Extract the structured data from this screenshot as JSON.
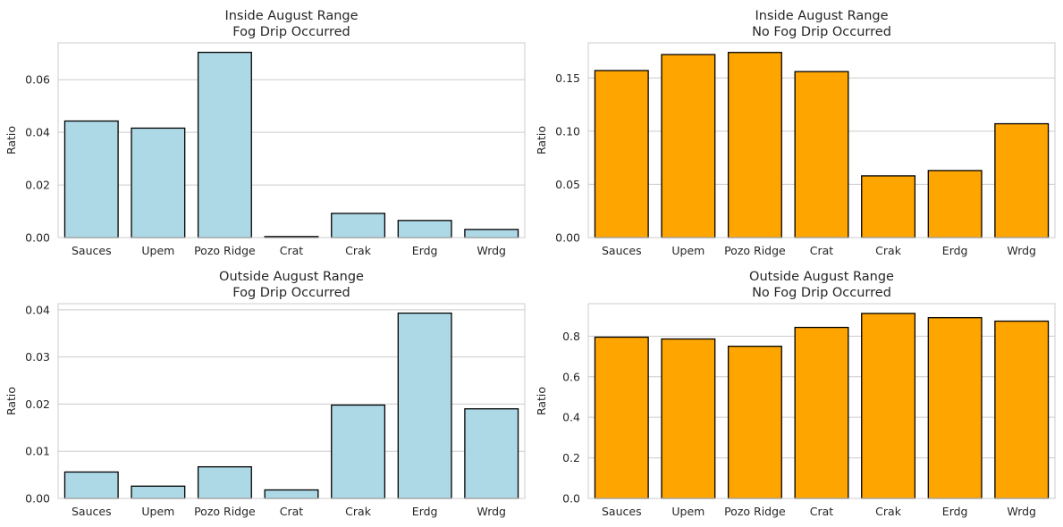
{
  "colors": {
    "fog": "#add8e6",
    "nofog": "#ffa500",
    "edge": "#000000",
    "grid": "#cccccc",
    "spine": "#cccccc",
    "text": "#262626"
  },
  "chart_data": [
    {
      "type": "bar",
      "title": [
        "Inside August Range",
        "Fog Drip Occurred"
      ],
      "categories": [
        "Sauces",
        "Upem",
        "Pozo Ridge",
        "Crat",
        "Crak",
        "Erdg",
        "Wrdg"
      ],
      "values": [
        0.0443,
        0.0416,
        0.0704,
        0.0004,
        0.0092,
        0.0065,
        0.0031
      ],
      "ylabel": "Ratio",
      "xlabel": "",
      "ylim": [
        0,
        0.074
      ],
      "yticks": [
        0,
        0.02,
        0.04,
        0.06
      ],
      "ytick_labels": [
        "0.00",
        "0.02",
        "0.04",
        "0.06"
      ],
      "color_key": "fog",
      "grid": "y"
    },
    {
      "type": "bar",
      "title": [
        "Inside August Range",
        "No Fog Drip Occurred"
      ],
      "categories": [
        "Sauces",
        "Upem",
        "Pozo Ridge",
        "Crat",
        "Crak",
        "Erdg",
        "Wrdg"
      ],
      "values": [
        0.157,
        0.172,
        0.174,
        0.156,
        0.058,
        0.063,
        0.107
      ],
      "ylabel": "Ratio",
      "xlabel": "",
      "ylim": [
        0,
        0.183
      ],
      "yticks": [
        0,
        0.05,
        0.1,
        0.15
      ],
      "ytick_labels": [
        "0.00",
        "0.05",
        "0.10",
        "0.15"
      ],
      "color_key": "nofog",
      "grid": "y"
    },
    {
      "type": "bar",
      "title": [
        "Outside August Range",
        "Fog Drip Occurred"
      ],
      "categories": [
        "Sauces",
        "Upem",
        "Pozo Ridge",
        "Crat",
        "Crak",
        "Erdg",
        "Wrdg"
      ],
      "values": [
        0.0056,
        0.0026,
        0.0067,
        0.0018,
        0.0198,
        0.0393,
        0.019
      ],
      "ylabel": "Ratio",
      "xlabel": "",
      "ylim": [
        0,
        0.0413
      ],
      "yticks": [
        0,
        0.01,
        0.02,
        0.03,
        0.04
      ],
      "ytick_labels": [
        "0.00",
        "0.01",
        "0.02",
        "0.03",
        "0.04"
      ],
      "color_key": "fog",
      "grid": "y"
    },
    {
      "type": "bar",
      "title": [
        "Outside August Range",
        "No Fog Drip Occurred"
      ],
      "categories": [
        "Sauces",
        "Upem",
        "Pozo Ridge",
        "Crat",
        "Crak",
        "Erdg",
        "Wrdg"
      ],
      "values": [
        0.795,
        0.786,
        0.75,
        0.843,
        0.912,
        0.891,
        0.874
      ],
      "ylabel": "Ratio",
      "xlabel": "",
      "ylim": [
        0,
        0.96
      ],
      "yticks": [
        0,
        0.2,
        0.4,
        0.6,
        0.8
      ],
      "ytick_labels": [
        "0.0",
        "0.2",
        "0.4",
        "0.6",
        "0.8"
      ],
      "color_key": "nofog",
      "grid": "y"
    }
  ]
}
